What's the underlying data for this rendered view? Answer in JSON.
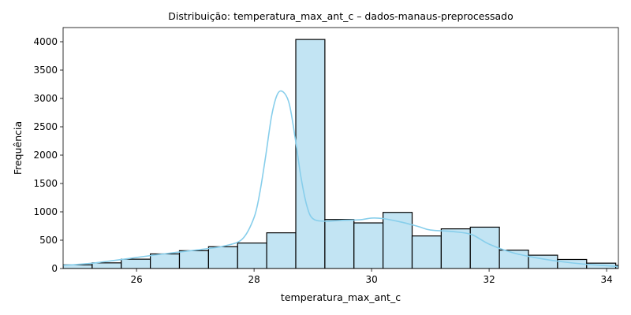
{
  "chart_data": {
    "type": "bar",
    "title": "Distribuição: temperatura_max_ant_c – dados-manaus-preprocessado",
    "xlabel": "temperatura_max_ant_c",
    "ylabel": "Frequência",
    "xlim": [
      24.75,
      34.2
    ],
    "ylim": [
      0,
      4250
    ],
    "x_ticks": [
      26,
      28,
      30,
      32,
      34
    ],
    "y_ticks": [
      0,
      500,
      1000,
      1500,
      2000,
      2500,
      3000,
      3500,
      4000
    ],
    "bin_width": 0.495,
    "bins": [
      {
        "start": 24.75,
        "value": 65
      },
      {
        "start": 25.245,
        "value": 100
      },
      {
        "start": 25.74,
        "value": 165
      },
      {
        "start": 26.235,
        "value": 258
      },
      {
        "start": 26.73,
        "value": 315
      },
      {
        "start": 27.225,
        "value": 385
      },
      {
        "start": 27.72,
        "value": 450
      },
      {
        "start": 28.215,
        "value": 630
      },
      {
        "start": 28.71,
        "value": 4040
      },
      {
        "start": 29.205,
        "value": 865
      },
      {
        "start": 29.7,
        "value": 805
      },
      {
        "start": 30.195,
        "value": 990
      },
      {
        "start": 30.69,
        "value": 575
      },
      {
        "start": 31.185,
        "value": 700
      },
      {
        "start": 31.68,
        "value": 730
      },
      {
        "start": 32.175,
        "value": 325
      },
      {
        "start": 32.67,
        "value": 235
      },
      {
        "start": 33.165,
        "value": 160
      },
      {
        "start": 33.66,
        "value": 95
      },
      {
        "start": 34.155,
        "value": 55
      }
    ],
    "kde": {
      "x": [
        24.75,
        25.2,
        25.6,
        26.0,
        26.4,
        26.8,
        27.2,
        27.5,
        27.8,
        28.0,
        28.1,
        28.2,
        28.3,
        28.4,
        28.5,
        28.6,
        28.7,
        28.8,
        28.9,
        29.0,
        29.2,
        29.5,
        29.8,
        30.0,
        30.2,
        30.5,
        30.8,
        31.0,
        31.4,
        31.7,
        32.0,
        32.4,
        32.8,
        33.2,
        33.6,
        34.2
      ],
      "y": [
        55,
        90,
        140,
        195,
        250,
        300,
        350,
        400,
        520,
        900,
        1350,
        2000,
        2700,
        3080,
        3110,
        2900,
        2300,
        1600,
        1100,
        880,
        835,
        850,
        860,
        890,
        880,
        820,
        740,
        680,
        650,
        600,
        430,
        280,
        190,
        125,
        80,
        35
      ]
    },
    "grid": false,
    "legend": "none",
    "bar_fill": "#c2e4f3",
    "bar_edge": "#000000",
    "kde_color": "#87ceeb"
  }
}
